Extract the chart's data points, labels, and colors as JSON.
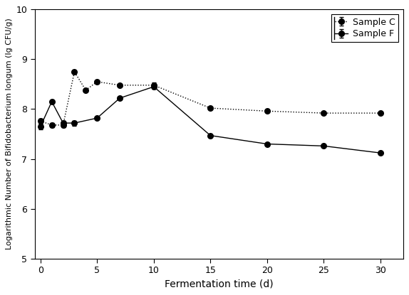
{
  "sample_c_x": [
    0,
    1,
    2,
    3,
    4,
    5,
    7,
    10,
    15,
    20,
    25,
    30
  ],
  "sample_c_y": [
    7.76,
    7.68,
    7.68,
    8.75,
    8.38,
    8.55,
    8.48,
    8.48,
    8.02,
    7.96,
    7.92,
    7.92
  ],
  "sample_c_yerr": [
    0.05,
    0.04,
    0.04,
    0.0,
    0.0,
    0.0,
    0.0,
    0.05,
    0.0,
    0.0,
    0.0,
    0.0
  ],
  "sample_f_x": [
    0,
    1,
    2,
    3,
    5,
    7,
    10,
    15,
    20,
    25,
    30
  ],
  "sample_f_y": [
    7.65,
    8.15,
    7.72,
    7.72,
    7.82,
    8.22,
    8.45,
    7.47,
    7.3,
    7.26,
    7.12
  ],
  "sample_f_yerr": [
    0.05,
    0.0,
    0.05,
    0.05,
    0.0,
    0.0,
    0.05,
    0.0,
    0.0,
    0.0,
    0.0
  ],
  "xlabel": "Fermentation time (d)",
  "ylabel": "Logarithmic Number of Bifidobacterium longum (lg CFU/g)",
  "xlim": [
    -0.5,
    32
  ],
  "ylim": [
    5,
    10
  ],
  "yticks": [
    5,
    6,
    7,
    8,
    9,
    10
  ],
  "xticks": [
    0,
    5,
    10,
    15,
    20,
    25,
    30
  ],
  "color": "#000000",
  "legend_labels": [
    "Sample C",
    "Sample F"
  ],
  "background_color": "#ffffff",
  "marker_size": 5.5,
  "linewidth": 1.0
}
